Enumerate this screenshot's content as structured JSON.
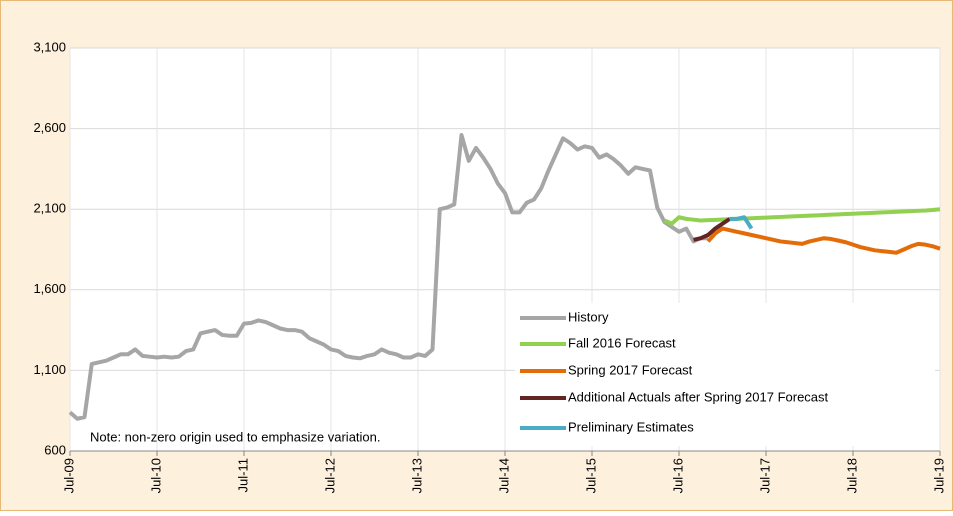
{
  "chart_data": {
    "type": "line",
    "note": "Note: non-zero origin used to emphasize variation.",
    "categories": [
      "Jul-09",
      null,
      null,
      null,
      null,
      null,
      null,
      null,
      null,
      null,
      null,
      null,
      "Jul-10",
      null,
      null,
      null,
      null,
      null,
      null,
      null,
      null,
      null,
      null,
      null,
      "Jul-11",
      null,
      null,
      null,
      null,
      null,
      null,
      null,
      null,
      null,
      null,
      null,
      "Jul-12",
      null,
      null,
      null,
      null,
      null,
      null,
      null,
      null,
      null,
      null,
      null,
      "Jul-13",
      null,
      null,
      null,
      null,
      null,
      null,
      null,
      null,
      null,
      null,
      null,
      "Jul-14",
      null,
      null,
      null,
      null,
      null,
      null,
      null,
      null,
      null,
      null,
      null,
      "Jul-15",
      null,
      null,
      null,
      null,
      null,
      null,
      null,
      null,
      null,
      null,
      null,
      "Jul-16",
      null,
      null,
      null,
      null,
      null,
      null,
      null,
      null,
      null,
      null,
      null,
      "Jul-17",
      null,
      null,
      null,
      null,
      null,
      null,
      null,
      null,
      null,
      null,
      null,
      "Jul-18",
      null,
      null,
      null,
      null,
      null,
      null,
      null,
      null,
      null,
      null,
      null,
      "Jul-19"
    ],
    "ylim": [
      600,
      3100
    ],
    "yticks": [
      600,
      {
        "value": 1100,
        "label": "1,100"
      },
      {
        "value": 1600,
        "label": "1,600"
      },
      {
        "value": 2100,
        "label": "2,100"
      },
      {
        "value": 2600,
        "label": "2,600"
      },
      {
        "value": 3100,
        "label": "3,100"
      }
    ],
    "grid": true,
    "series": [
      {
        "name": "History",
        "color": "#a6a6a6",
        "values": [
          840,
          800,
          810,
          1140,
          1150,
          1160,
          1180,
          1200,
          1200,
          1230,
          1190,
          1185,
          1180,
          1185,
          1180,
          1185,
          1220,
          1230,
          1330,
          1340,
          1350,
          1320,
          1315,
          1315,
          1390,
          1395,
          1410,
          1400,
          1380,
          1360,
          1350,
          1350,
          1340,
          1300,
          1280,
          1260,
          1230,
          1220,
          1190,
          1180,
          1175,
          1190,
          1200,
          1230,
          1210,
          1200,
          1180,
          1180,
          1200,
          1190,
          1230,
          2100,
          2110,
          2130,
          2560,
          2400,
          2480,
          2420,
          2350,
          2260,
          2200,
          2080,
          2080,
          2140,
          2160,
          2230,
          2340,
          2440,
          2540,
          2510,
          2470,
          2490,
          2480,
          2420,
          2440,
          2410,
          2370,
          2320,
          2360,
          2350,
          2340,
          2110,
          2020,
          1990,
          1960,
          1980,
          1900,
          1920,
          1920,
          null,
          null,
          null,
          null,
          null,
          null,
          null,
          null,
          null,
          null,
          null,
          null,
          null,
          null,
          null,
          null,
          null,
          null,
          null,
          null,
          null,
          null,
          null,
          null,
          null,
          null,
          null,
          null,
          null,
          null,
          null,
          null
        ]
      },
      {
        "name": "Fall 2016 Forecast",
        "color": "#92d050",
        "values": [
          null,
          null,
          null,
          null,
          null,
          null,
          null,
          null,
          null,
          null,
          null,
          null,
          null,
          null,
          null,
          null,
          null,
          null,
          null,
          null,
          null,
          null,
          null,
          null,
          null,
          null,
          null,
          null,
          null,
          null,
          null,
          null,
          null,
          null,
          null,
          null,
          null,
          null,
          null,
          null,
          null,
          null,
          null,
          null,
          null,
          null,
          null,
          null,
          null,
          null,
          null,
          null,
          null,
          null,
          null,
          null,
          null,
          null,
          null,
          null,
          null,
          null,
          null,
          null,
          null,
          null,
          null,
          null,
          null,
          null,
          null,
          null,
          null,
          null,
          null,
          null,
          null,
          null,
          null,
          null,
          null,
          null,
          2030,
          2010,
          2050,
          2040,
          2035,
          2030,
          2032,
          2034,
          2036,
          2038,
          2040,
          2042,
          2044,
          2046,
          2048,
          2050,
          2052,
          2054,
          2056,
          2058,
          2060,
          2062,
          2064,
          2066,
          2068,
          2070,
          2072,
          2074,
          2076,
          2078,
          2080,
          2082,
          2084,
          2086,
          2088,
          2090,
          2092,
          2095,
          2100
        ]
      },
      {
        "name": "Spring 2017 Forecast",
        "color": "#e36c09",
        "values": [
          null,
          null,
          null,
          null,
          null,
          null,
          null,
          null,
          null,
          null,
          null,
          null,
          null,
          null,
          null,
          null,
          null,
          null,
          null,
          null,
          null,
          null,
          null,
          null,
          null,
          null,
          null,
          null,
          null,
          null,
          null,
          null,
          null,
          null,
          null,
          null,
          null,
          null,
          null,
          null,
          null,
          null,
          null,
          null,
          null,
          null,
          null,
          null,
          null,
          null,
          null,
          null,
          null,
          null,
          null,
          null,
          null,
          null,
          null,
          null,
          null,
          null,
          null,
          null,
          null,
          null,
          null,
          null,
          null,
          null,
          null,
          null,
          null,
          null,
          null,
          null,
          null,
          null,
          null,
          null,
          null,
          null,
          null,
          null,
          null,
          null,
          null,
          null,
          1900,
          1950,
          1980,
          1970,
          1960,
          1950,
          1940,
          1930,
          1920,
          1910,
          1900,
          1895,
          1890,
          1885,
          1900,
          1910,
          1920,
          1915,
          1905,
          1895,
          1880,
          1865,
          1855,
          1845,
          1840,
          1835,
          1830,
          1850,
          1870,
          1885,
          1880,
          1870,
          1855
        ]
      },
      {
        "name": "Additional Actuals after Spring 2017 Forecast",
        "color": "#632523",
        "values": [
          null,
          null,
          null,
          null,
          null,
          null,
          null,
          null,
          null,
          null,
          null,
          null,
          null,
          null,
          null,
          null,
          null,
          null,
          null,
          null,
          null,
          null,
          null,
          null,
          null,
          null,
          null,
          null,
          null,
          null,
          null,
          null,
          null,
          null,
          null,
          null,
          null,
          null,
          null,
          null,
          null,
          null,
          null,
          null,
          null,
          null,
          null,
          null,
          null,
          null,
          null,
          null,
          null,
          null,
          null,
          null,
          null,
          null,
          null,
          null,
          null,
          null,
          null,
          null,
          null,
          null,
          null,
          null,
          null,
          null,
          null,
          null,
          null,
          null,
          null,
          null,
          null,
          null,
          null,
          null,
          null,
          null,
          null,
          null,
          null,
          null,
          1910,
          1920,
          1940,
          1980,
          2010,
          2040,
          null,
          null,
          null,
          null,
          null,
          null,
          null,
          null,
          null,
          null,
          null,
          null,
          null,
          null,
          null,
          null,
          null,
          null,
          null,
          null,
          null,
          null,
          null,
          null,
          null,
          null,
          null,
          null,
          null
        ]
      },
      {
        "name": "Preliminary Estimates",
        "color": "#4bacc6",
        "values": [
          null,
          null,
          null,
          null,
          null,
          null,
          null,
          null,
          null,
          null,
          null,
          null,
          null,
          null,
          null,
          null,
          null,
          null,
          null,
          null,
          null,
          null,
          null,
          null,
          null,
          null,
          null,
          null,
          null,
          null,
          null,
          null,
          null,
          null,
          null,
          null,
          null,
          null,
          null,
          null,
          null,
          null,
          null,
          null,
          null,
          null,
          null,
          null,
          null,
          null,
          null,
          null,
          null,
          null,
          null,
          null,
          null,
          null,
          null,
          null,
          null,
          null,
          null,
          null,
          null,
          null,
          null,
          null,
          null,
          null,
          null,
          null,
          null,
          null,
          null,
          null,
          null,
          null,
          null,
          null,
          null,
          null,
          null,
          null,
          null,
          null,
          null,
          null,
          null,
          null,
          null,
          2040,
          2040,
          2050,
          1980,
          null,
          null,
          null,
          null,
          null,
          null,
          null,
          null,
          null,
          null,
          null,
          null,
          null,
          null,
          null,
          null,
          null,
          null,
          null,
          null,
          null,
          null,
          null,
          null,
          null,
          null
        ]
      }
    ]
  }
}
